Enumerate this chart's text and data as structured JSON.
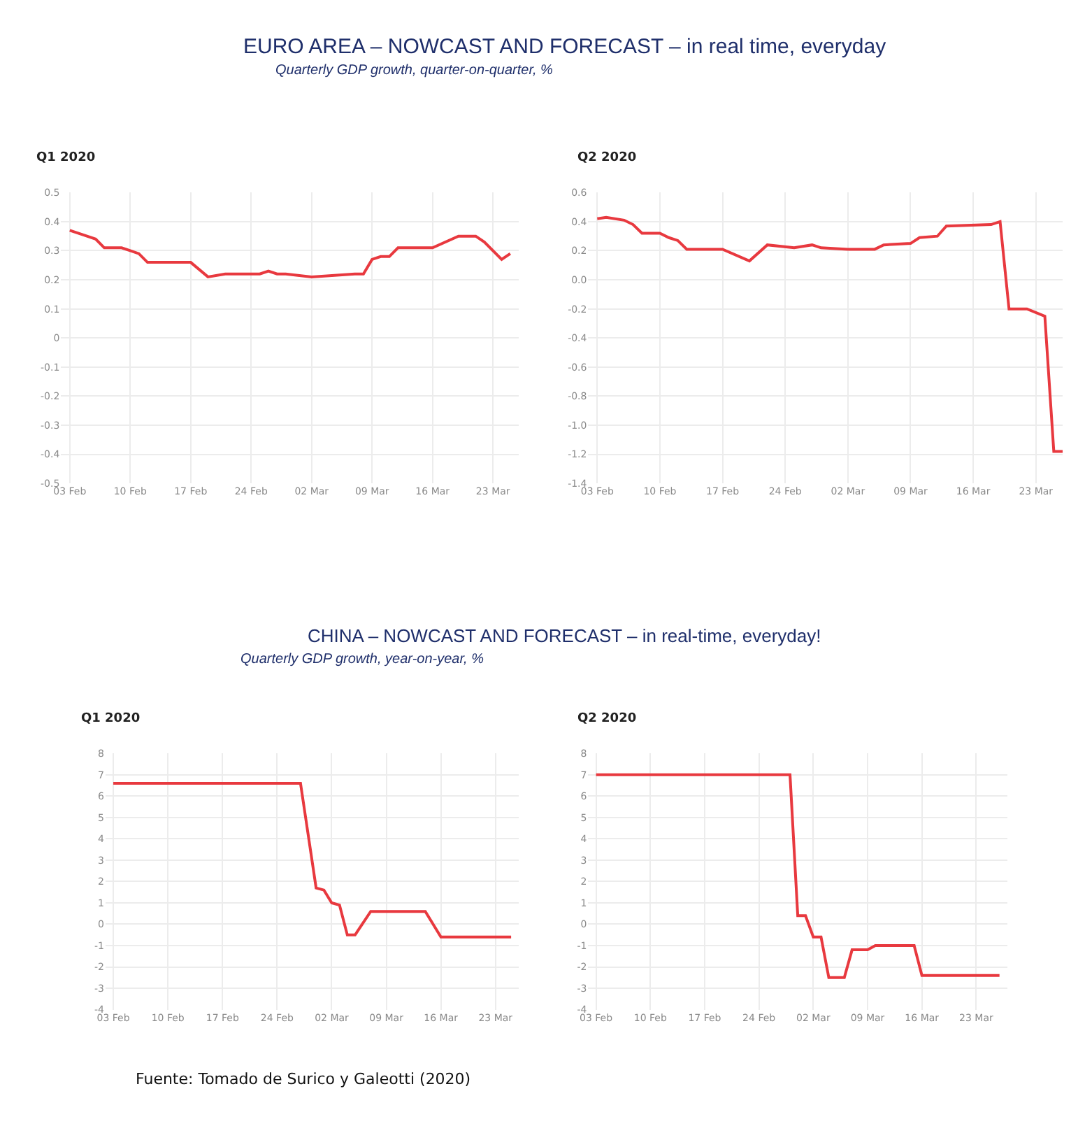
{
  "chart_data": [
    {
      "type": "line",
      "title": "Q1 2020",
      "annotations": [
        "EURO AREA – NOWCAST AND FORECAST – in real time, everyday",
        "Quarterly GDP growth, quarter-on-quarter, %"
      ],
      "x": [
        "2020-02-03",
        "2020-02-05",
        "2020-02-06",
        "2020-02-07",
        "2020-02-09",
        "2020-02-10",
        "2020-02-11",
        "2020-02-12",
        "2020-02-14",
        "2020-02-17",
        "2020-02-19",
        "2020-02-21",
        "2020-02-25",
        "2020-02-26",
        "2020-02-27",
        "2020-02-28",
        "2020-03-02",
        "2020-03-07",
        "2020-03-08",
        "2020-03-09",
        "2020-03-10",
        "2020-03-11",
        "2020-03-12",
        "2020-03-16",
        "2020-03-19",
        "2020-03-21",
        "2020-03-22",
        "2020-03-24",
        "2020-03-25"
      ],
      "series": [
        {
          "color": "#e8393f",
          "values": [
            0.37,
            0.35,
            0.34,
            0.31,
            0.31,
            0.3,
            0.29,
            0.26,
            0.26,
            0.26,
            0.21,
            0.22,
            0.22,
            0.23,
            0.22,
            0.22,
            0.21,
            0.22,
            0.22,
            0.27,
            0.28,
            0.28,
            0.31,
            0.31,
            0.35,
            0.35,
            0.33,
            0.27,
            0.29
          ]
        }
      ],
      "xlim": [
        "2020-02-02",
        "2020-03-26"
      ],
      "xticks": [
        {
          "value": "2020-02-03",
          "label": "03 Feb"
        },
        {
          "value": "2020-02-10",
          "label": "10 Feb"
        },
        {
          "value": "2020-02-17",
          "label": "17 Feb"
        },
        {
          "value": "2020-02-24",
          "label": "24 Feb"
        },
        {
          "value": "2020-03-02",
          "label": "02 Mar"
        },
        {
          "value": "2020-03-09",
          "label": "09 Mar"
        },
        {
          "value": "2020-03-16",
          "label": "16 Mar"
        },
        {
          "value": "2020-03-23",
          "label": "23 Mar"
        }
      ],
      "ylim": [
        -0.5,
        0.5
      ],
      "yticks": [
        0.5,
        0.4,
        0.3,
        0.2,
        0.1,
        0,
        -0.1,
        -0.2,
        -0.3,
        -0.4,
        -0.5
      ],
      "grid": true,
      "marker": "none",
      "line_style": "solid"
    },
    {
      "type": "line",
      "title": "Q2 2020",
      "x": [
        "2020-02-03",
        "2020-02-04",
        "2020-02-06",
        "2020-02-07",
        "2020-02-08",
        "2020-02-10",
        "2020-02-11",
        "2020-02-12",
        "2020-02-13",
        "2020-02-17",
        "2020-02-20",
        "2020-02-22",
        "2020-02-25",
        "2020-02-27",
        "2020-02-28",
        "2020-03-02",
        "2020-03-05",
        "2020-03-06",
        "2020-03-09",
        "2020-03-10",
        "2020-03-12",
        "2020-03-13",
        "2020-03-18",
        "2020-03-19",
        "2020-03-20",
        "2020-03-22",
        "2020-03-24",
        "2020-03-25",
        "2020-03-26"
      ],
      "series": [
        {
          "color": "#e8393f",
          "values": [
            0.42,
            0.43,
            0.41,
            0.38,
            0.32,
            0.32,
            0.29,
            0.27,
            0.21,
            0.21,
            0.13,
            0.24,
            0.22,
            0.24,
            0.22,
            0.21,
            0.21,
            0.24,
            0.25,
            0.29,
            0.3,
            0.37,
            0.38,
            0.4,
            -0.2,
            -0.2,
            -0.25,
            -1.18,
            -1.18
          ]
        }
      ],
      "xlim": [
        "2020-02-02",
        "2020-03-26"
      ],
      "xticks": [
        {
          "value": "2020-02-03",
          "label": "03 Feb"
        },
        {
          "value": "2020-02-10",
          "label": "10 Feb"
        },
        {
          "value": "2020-02-17",
          "label": "17 Feb"
        },
        {
          "value": "2020-02-24",
          "label": "24 Feb"
        },
        {
          "value": "2020-03-02",
          "label": "02 Mar"
        },
        {
          "value": "2020-03-09",
          "label": "09 Mar"
        },
        {
          "value": "2020-03-16",
          "label": "16 Mar"
        },
        {
          "value": "2020-03-23",
          "label": "23 Mar"
        }
      ],
      "ylim": [
        -1.4,
        0.6
      ],
      "yticks": [
        0.6,
        0.4,
        0.2,
        {
          "value": 0,
          "label": "0.0"
        },
        -0.2,
        -0.4,
        -0.6,
        -0.8,
        {
          "value": -1,
          "label": "-1.0"
        },
        -1.2,
        -1.4
      ],
      "grid": true,
      "marker": "none",
      "line_style": "solid"
    },
    {
      "type": "line",
      "title": "Q1 2020",
      "annotations": [
        "CHINA – NOWCAST AND FORECAST – in real-time, everyday!",
        "Quarterly GDP growth, year-on-year, %"
      ],
      "x": [
        "2020-02-03",
        "2020-02-27",
        "2020-02-29",
        "2020-03-01",
        "2020-03-02",
        "2020-03-03",
        "2020-03-04",
        "2020-03-05",
        "2020-03-07",
        "2020-03-14",
        "2020-03-16",
        "2020-03-25"
      ],
      "series": [
        {
          "color": "#e8393f",
          "values": [
            6.6,
            6.6,
            1.7,
            1.6,
            1.0,
            0.9,
            -0.5,
            -0.5,
            0.6,
            0.6,
            -0.6,
            -0.6
          ]
        }
      ],
      "xlim": [
        "2020-02-02",
        "2020-03-26"
      ],
      "xticks": [
        {
          "value": "2020-02-03",
          "label": "03 Feb"
        },
        {
          "value": "2020-02-10",
          "label": "10 Feb"
        },
        {
          "value": "2020-02-17",
          "label": "17 Feb"
        },
        {
          "value": "2020-02-24",
          "label": "24 Feb"
        },
        {
          "value": "2020-03-02",
          "label": "02 Mar"
        },
        {
          "value": "2020-03-09",
          "label": "09 Mar"
        },
        {
          "value": "2020-03-16",
          "label": "16 Mar"
        },
        {
          "value": "2020-03-23",
          "label": "23 Mar"
        }
      ],
      "ylim": [
        -4,
        8
      ],
      "yticks": [
        8,
        7,
        6,
        5,
        4,
        3,
        2,
        1,
        0,
        -1,
        -2,
        -3,
        -4
      ],
      "grid": true,
      "marker": "none",
      "line_style": "solid"
    },
    {
      "type": "line",
      "title": "Q2 2020",
      "annotations": [
        "Fuente: Tomado de Surico y Galeotti (2020)"
      ],
      "x": [
        "2020-02-03",
        "2020-02-28",
        "2020-02-29",
        "2020-03-01",
        "2020-03-02",
        "2020-03-03",
        "2020-03-04",
        "2020-03-06",
        "2020-03-07",
        "2020-03-09",
        "2020-03-10",
        "2020-03-15",
        "2020-03-16",
        "2020-03-26"
      ],
      "series": [
        {
          "color": "#e8393f",
          "values": [
            7.0,
            7.0,
            0.4,
            0.4,
            -0.6,
            -0.6,
            -2.5,
            -2.5,
            -1.2,
            -1.2,
            -1.0,
            -1.0,
            -2.4,
            -2.4
          ]
        }
      ],
      "xlim": [
        "2020-02-02",
        "2020-03-27"
      ],
      "xticks": [
        {
          "value": "2020-02-03",
          "label": "03 Feb"
        },
        {
          "value": "2020-02-10",
          "label": "10 Feb"
        },
        {
          "value": "2020-02-17",
          "label": "17 Feb"
        },
        {
          "value": "2020-02-24",
          "label": "24 Feb"
        },
        {
          "value": "2020-03-02",
          "label": "02 Mar"
        },
        {
          "value": "2020-03-09",
          "label": "09 Mar"
        },
        {
          "value": "2020-03-16",
          "label": "16 Mar"
        },
        {
          "value": "2020-03-23",
          "label": "23 Mar"
        }
      ],
      "ylim": [
        -4,
        8
      ],
      "yticks": [
        8,
        7,
        6,
        5,
        4,
        3,
        2,
        1,
        0,
        -1,
        -2,
        -3,
        -4
      ],
      "grid": true,
      "marker": "none",
      "line_style": "solid"
    }
  ]
}
